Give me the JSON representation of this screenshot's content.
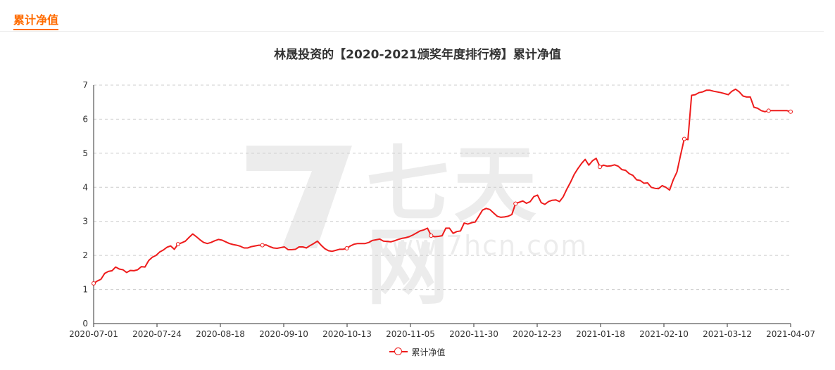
{
  "section": {
    "title": "累计净值"
  },
  "chart_data": {
    "type": "line",
    "title": "林晟投资的【2020-2021颁奖年度排行榜】累计净值",
    "xlabel": "",
    "ylabel": "",
    "ylim": [
      0,
      7
    ],
    "yticks": [
      "0",
      "1",
      "2",
      "3",
      "4",
      "5",
      "6",
      "7"
    ],
    "xticks": [
      "2020-07-01",
      "2020-07-24",
      "2020-08-18",
      "2020-09-10",
      "2020-10-13",
      "2020-11-05",
      "2020-11-30",
      "2020-12-23",
      "2021-01-18",
      "2021-02-10",
      "2021-03-12",
      "2021-04-07"
    ],
    "grid": "horizontal-dashed",
    "legend_position": "bottom-center",
    "series": [
      {
        "name": "累计净值",
        "color": "#ee1c1c",
        "marker_every": 23,
        "values": [
          1.18,
          1.25,
          1.3,
          1.47,
          1.53,
          1.55,
          1.66,
          1.6,
          1.58,
          1.5,
          1.56,
          1.55,
          1.58,
          1.67,
          1.66,
          1.85,
          1.95,
          2.0,
          2.1,
          2.16,
          2.24,
          2.28,
          2.18,
          2.33,
          2.37,
          2.42,
          2.53,
          2.63,
          2.55,
          2.46,
          2.38,
          2.35,
          2.38,
          2.43,
          2.47,
          2.45,
          2.4,
          2.35,
          2.32,
          2.3,
          2.27,
          2.22,
          2.22,
          2.26,
          2.28,
          2.3,
          2.3,
          2.31,
          2.26,
          2.22,
          2.21,
          2.23,
          2.25,
          2.17,
          2.17,
          2.18,
          2.25,
          2.25,
          2.22,
          2.29,
          2.35,
          2.42,
          2.3,
          2.2,
          2.14,
          2.12,
          2.15,
          2.18,
          2.18,
          2.21,
          2.28,
          2.33,
          2.35,
          2.35,
          2.35,
          2.38,
          2.44,
          2.46,
          2.48,
          2.42,
          2.41,
          2.4,
          2.43,
          2.47,
          2.5,
          2.52,
          2.55,
          2.6,
          2.66,
          2.72,
          2.75,
          2.8,
          2.58,
          2.55,
          2.56,
          2.58,
          2.8,
          2.8,
          2.65,
          2.7,
          2.72,
          2.95,
          2.92,
          2.96,
          2.98,
          3.15,
          3.33,
          3.38,
          3.35,
          3.25,
          3.15,
          3.12,
          3.13,
          3.15,
          3.2,
          3.52,
          3.56,
          3.6,
          3.53,
          3.58,
          3.73,
          3.77,
          3.55,
          3.5,
          3.58,
          3.62,
          3.63,
          3.58,
          3.72,
          3.95,
          4.15,
          4.38,
          4.55,
          4.7,
          4.82,
          4.65,
          4.78,
          4.85,
          4.6,
          4.65,
          4.62,
          4.63,
          4.66,
          4.62,
          4.52,
          4.5,
          4.4,
          4.35,
          4.22,
          4.2,
          4.12,
          4.13,
          4.0,
          3.97,
          3.96,
          4.05,
          4.0,
          3.92,
          4.22,
          4.45,
          4.95,
          5.42,
          5.4,
          6.7,
          6.72,
          6.78,
          6.8,
          6.85,
          6.85,
          6.82,
          6.8,
          6.78,
          6.75,
          6.72,
          6.82,
          6.88,
          6.8,
          6.68,
          6.65,
          6.65,
          6.35,
          6.32,
          6.25,
          6.22,
          6.25,
          6.25,
          6.25,
          6.25,
          6.25,
          6.25,
          6.22
        ]
      }
    ]
  },
  "watermark": {
    "text": "七天网",
    "url": "www.7hcn.com"
  }
}
